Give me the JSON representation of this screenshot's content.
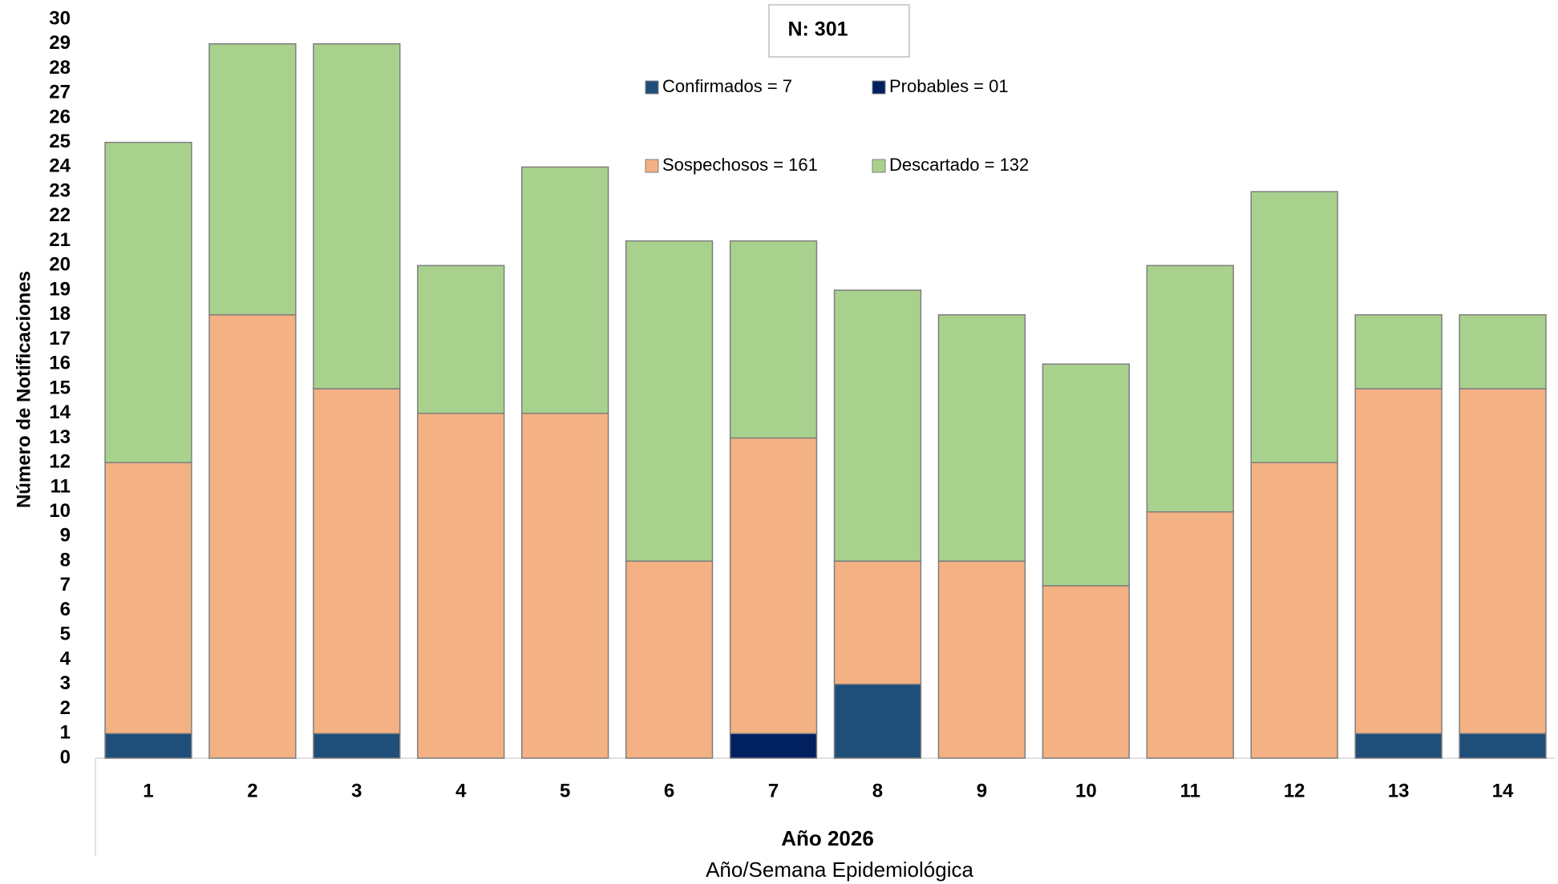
{
  "chart_data": {
    "type": "stacked_bar",
    "annotation": "N: 301",
    "xlabel": "Año 2026",
    "xlabel2": "Año/Semana Epidemiológica",
    "ylabel": "Número de Notificaciones",
    "categories": [
      "1",
      "2",
      "3",
      "4",
      "5",
      "6",
      "7",
      "8",
      "9",
      "10",
      "11",
      "12",
      "13",
      "14"
    ],
    "series": [
      {
        "name": "Confirmados = 7",
        "color": "#1f4e79",
        "values": [
          1,
          0,
          1,
          0,
          0,
          0,
          0,
          3,
          0,
          0,
          0,
          0,
          1,
          1
        ]
      },
      {
        "name": "Probables = 01",
        "color": "#002060",
        "values": [
          0,
          0,
          0,
          0,
          0,
          0,
          1,
          0,
          0,
          0,
          0,
          0,
          0,
          0
        ]
      },
      {
        "name": "Sospechosos = 161",
        "color": "#f4b183",
        "values": [
          11,
          18,
          14,
          14,
          14,
          8,
          12,
          5,
          8,
          7,
          10,
          12,
          14,
          14
        ]
      },
      {
        "name": "Descartado = 132",
        "color": "#a9d18e",
        "values": [
          13,
          11,
          14,
          6,
          10,
          13,
          8,
          11,
          10,
          9,
          10,
          11,
          3,
          3
        ]
      }
    ],
    "ylim": [
      0,
      30
    ],
    "yticks": [
      0,
      1,
      2,
      3,
      4,
      5,
      6,
      7,
      8,
      9,
      10,
      11,
      12,
      13,
      14,
      15,
      16,
      17,
      18,
      19,
      20,
      21,
      22,
      23,
      24,
      25,
      26,
      27,
      28,
      29,
      30
    ]
  }
}
